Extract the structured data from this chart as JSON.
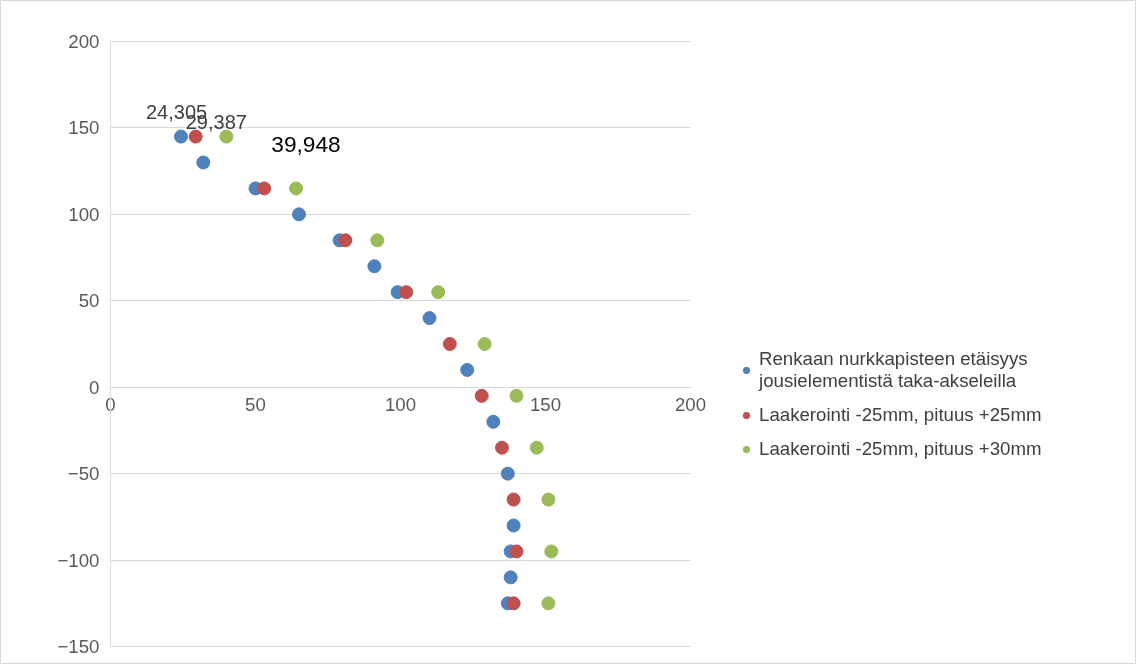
{
  "chart_data": {
    "type": "scatter",
    "xlim": [
      0,
      200
    ],
    "ylim": [
      -150,
      200
    ],
    "xticks": [
      0,
      50,
      100,
      150,
      200
    ],
    "yticks": [
      -150,
      -100,
      -50,
      0,
      50,
      100,
      150,
      200
    ],
    "grid": "y",
    "legend": "right",
    "marker": "circle",
    "series": [
      {
        "name": "Renkaan nurkkapisteen etäisyys jousielementistä taka-akseleilla",
        "color": "#4f81bd",
        "x": [
          24.305,
          32,
          50,
          65,
          79,
          91,
          99,
          110,
          123,
          132,
          137,
          139,
          138,
          137,
          138
        ],
        "values": [
          145,
          130,
          115,
          100,
          85,
          70,
          55,
          40,
          10,
          -20,
          -50,
          -80,
          -110,
          -125,
          -95
        ]
      },
      {
        "name": "Laakerointi -25mm, pituus +25mm",
        "color": "#c0504d",
        "x": [
          29.387,
          53,
          81,
          102,
          117,
          128,
          135,
          139,
          140,
          139
        ],
        "values": [
          145,
          115,
          85,
          55,
          25,
          -5,
          -35,
          -65,
          -95,
          -125
        ]
      },
      {
        "name": "Laakerointi -25mm, pituus +30mm",
        "color": "#9bbb59",
        "x": [
          39.948,
          64,
          92,
          113,
          129,
          140,
          147,
          151,
          152,
          151
        ],
        "values": [
          145,
          115,
          85,
          55,
          25,
          -5,
          -35,
          -65,
          -95,
          -125
        ]
      }
    ],
    "annotations": [
      {
        "text": "24,305",
        "x": 24.305,
        "y": 145
      },
      {
        "text": "29,387",
        "x": 29.387,
        "y": 145
      },
      {
        "text": "39,948",
        "x": 39.948,
        "y": 145
      }
    ]
  }
}
